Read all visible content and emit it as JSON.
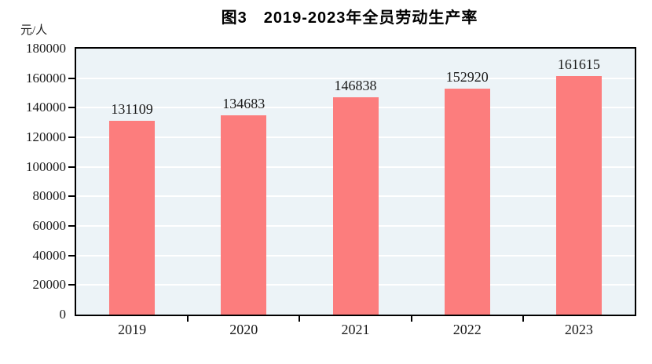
{
  "chart_data": {
    "type": "bar",
    "title": "图3　2019-2023年全员劳动生产率",
    "unit_label": "元/人",
    "categories": [
      "2019",
      "2020",
      "2021",
      "2022",
      "2023"
    ],
    "values": [
      131109,
      134683,
      146838,
      152920,
      161615
    ],
    "data_labels": [
      "131109",
      "134683",
      "146838",
      "152920",
      "161615"
    ],
    "xlabel": "",
    "ylabel": "元/人",
    "ylim": [
      0,
      180000
    ],
    "yticks": [
      0,
      20000,
      40000,
      60000,
      80000,
      100000,
      120000,
      140000,
      160000,
      180000
    ],
    "ytick_labels": [
      "0",
      "20000",
      "40000",
      "60000",
      "80000",
      "100000",
      "120000",
      "140000",
      "160000",
      "180000"
    ],
    "grid": "horizontal",
    "legend": "none",
    "colors": {
      "bar": "#FC7D7D",
      "plot_background": "#ECF3F7",
      "gridline": "#FFFFFF",
      "axis_frame": "#000000",
      "text": "#1A1A1A",
      "title_text": "#000000",
      "page_background": "#FFFFFF"
    }
  }
}
